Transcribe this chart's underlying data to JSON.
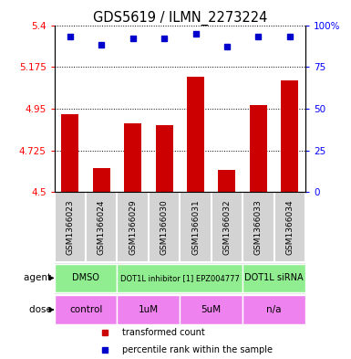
{
  "title": "GDS5619 / ILMN_2273224",
  "samples": [
    "GSM1366023",
    "GSM1366024",
    "GSM1366029",
    "GSM1366030",
    "GSM1366031",
    "GSM1366032",
    "GSM1366033",
    "GSM1366034"
  ],
  "bar_values": [
    4.92,
    4.63,
    4.87,
    4.86,
    5.12,
    4.62,
    4.97,
    5.1
  ],
  "dot_values": [
    93,
    88,
    92,
    92,
    95,
    87,
    93,
    93
  ],
  "ylim": [
    4.5,
    5.4
  ],
  "yticks": [
    4.5,
    4.725,
    4.95,
    5.175,
    5.4
  ],
  "ytick_labels": [
    "4.5",
    "4.725",
    "4.95",
    "5.175",
    "5.4"
  ],
  "y2ticks": [
    0,
    25,
    50,
    75,
    100
  ],
  "y2tick_labels": [
    "0",
    "25",
    "50",
    "75",
    "100%"
  ],
  "bar_color": "#cc0000",
  "dot_color": "#0000cc",
  "agent_groups": [
    {
      "label": "DMSO",
      "span": [
        0,
        2
      ],
      "color": "#90ee90"
    },
    {
      "label": "DOT1L inhibitor [1] EPZ004777",
      "span": [
        2,
        6
      ],
      "color": "#90ee90"
    },
    {
      "label": "DOT1L siRNA",
      "span": [
        6,
        8
      ],
      "color": "#90ee90"
    }
  ],
  "dose_groups": [
    {
      "label": "control",
      "span": [
        0,
        2
      ],
      "color": "#ee82ee"
    },
    {
      "label": "1uM",
      "span": [
        2,
        4
      ],
      "color": "#ee82ee"
    },
    {
      "label": "5uM",
      "span": [
        4,
        6
      ],
      "color": "#ee82ee"
    },
    {
      "label": "n/a",
      "span": [
        6,
        8
      ],
      "color": "#ee82ee"
    }
  ],
  "agent_label": "agent",
  "dose_label": "dose",
  "legend_items": [
    {
      "color": "#cc0000",
      "label": "transformed count"
    },
    {
      "color": "#0000cc",
      "label": "percentile rank within the sample"
    }
  ],
  "sample_bg_color": "#d3d3d3"
}
